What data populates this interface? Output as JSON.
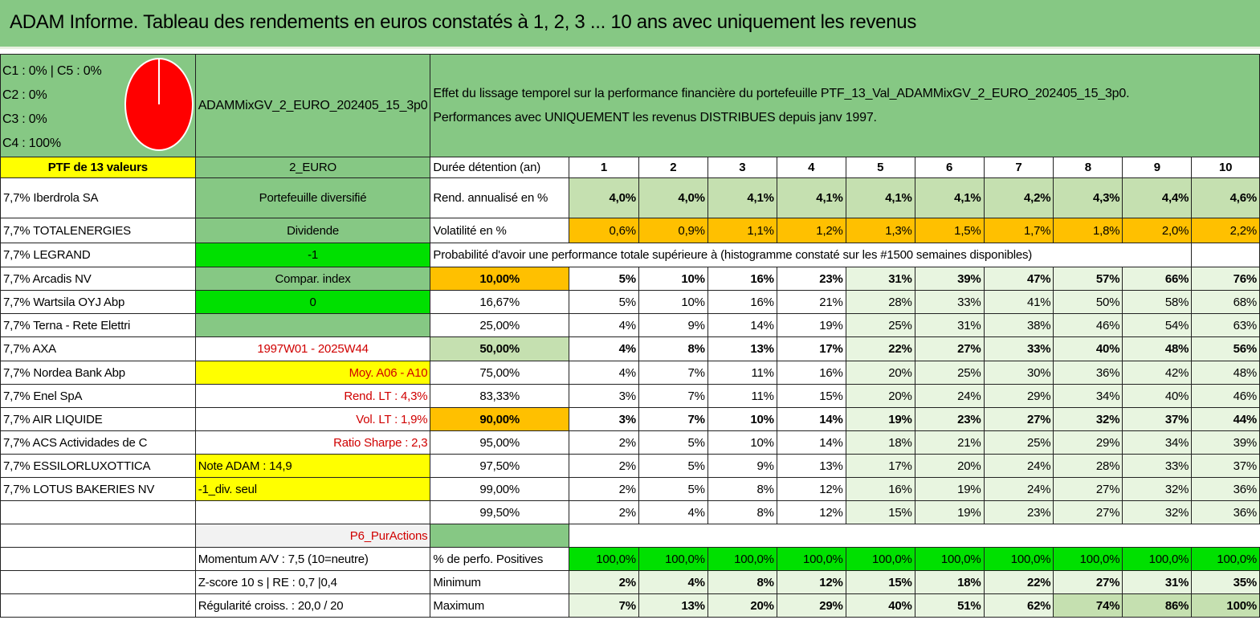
{
  "title": "ADAM Informe. Tableau des rendements en euros constatés à 1, 2, 3 ... 10 ans avec uniquement les revenus",
  "legend": [
    "C1 : 0% | C5 : 0%",
    "C2 : 0%",
    "C3 : 0%",
    "C4 : 100%"
  ],
  "pie": {
    "slices": [
      {
        "label": "C4",
        "value": 100,
        "color": "#ff0000"
      }
    ]
  },
  "portfolio_name": "ADAMMixGV_2_EURO_202405_15_3p0",
  "description_line1": "Effet du lissage temporel sur la performance financière du portefeuille PTF_13_Val_ADAMMixGV_2_EURO_202405_15_3p0.",
  "description_line2": "Performances avec UNIQUEMENT les revenus DISTRIBUES depuis janv 1997.",
  "ptf_label": "PTF de 13 valeurs",
  "currency": "2_EURO",
  "duration_label": "Durée détention (an)",
  "years": [
    "1",
    "2",
    "3",
    "4",
    "5",
    "6",
    "7",
    "8",
    "9",
    "10"
  ],
  "holdings": [
    "7,7% Iberdrola SA",
    "7,7% TOTALENERGIES",
    "7,7% LEGRAND",
    "7,7% Arcadis NV",
    "7,7% Wartsila OYJ Abp",
    "7,7% Terna - Rete Elettri",
    "7,7% AXA",
    "7,7% Nordea Bank Abp",
    "7,7% Enel SpA",
    "7,7% AIR LIQUIDE",
    "7,7% ACS Actividades de C",
    "7,7% ESSILORLUXOTTICA",
    "7,7% LOTUS BAKERIES NV"
  ],
  "info": {
    "diversified": "Portefeuille diversifié",
    "dividend": "Dividende",
    "dividend_value": "-1",
    "compar": "Compar. index",
    "compar_value": "0",
    "period": "1997W01 - 2025W44",
    "moy": "Moy. A06 - A10",
    "rend_lt": "Rend. LT : 4,3%",
    "vol_lt": "Vol. LT : 1,9%",
    "sharpe": "Ratio Sharpe : 2,3",
    "note": "Note ADAM : 14,9",
    "div_seul": "-1_div. seul",
    "p6": "P6_PurActions",
    "momentum": "Momentum A/V : 7,5 (10=neutre)",
    "zscore": "Z-score 10 s | RE : 0,7 |0,4",
    "regularite": "Régularité croiss. : 20,0 / 20"
  },
  "rend_label": "Rend. annualisé en %",
  "rend_values": [
    "4,0%",
    "4,0%",
    "4,1%",
    "4,1%",
    "4,1%",
    "4,1%",
    "4,2%",
    "4,3%",
    "4,4%",
    "4,6%"
  ],
  "vol_label": "Volatilité en %",
  "vol_values": [
    "0,6%",
    "0,9%",
    "1,1%",
    "1,2%",
    "1,3%",
    "1,5%",
    "1,7%",
    "1,8%",
    "2,0%",
    "2,2%"
  ],
  "prob_title": "Probabilité d'avoir une performance totale supérieure à (histogramme constaté sur les #1500 semaines disponibles)",
  "prob_rows": [
    {
      "threshold": "10,00%",
      "values": [
        "5%",
        "10%",
        "16%",
        "23%",
        "31%",
        "39%",
        "47%",
        "57%",
        "66%",
        "76%"
      ]
    },
    {
      "threshold": "16,67%",
      "values": [
        "5%",
        "10%",
        "16%",
        "21%",
        "28%",
        "33%",
        "41%",
        "50%",
        "58%",
        "68%"
      ]
    },
    {
      "threshold": "25,00%",
      "values": [
        "4%",
        "9%",
        "14%",
        "19%",
        "25%",
        "31%",
        "38%",
        "46%",
        "54%",
        "63%"
      ]
    },
    {
      "threshold": "50,00%",
      "values": [
        "4%",
        "8%",
        "13%",
        "17%",
        "22%",
        "27%",
        "33%",
        "40%",
        "48%",
        "56%"
      ]
    },
    {
      "threshold": "75,00%",
      "values": [
        "4%",
        "7%",
        "11%",
        "16%",
        "20%",
        "25%",
        "30%",
        "36%",
        "42%",
        "48%"
      ]
    },
    {
      "threshold": "83,33%",
      "values": [
        "3%",
        "7%",
        "11%",
        "15%",
        "20%",
        "24%",
        "29%",
        "34%",
        "40%",
        "46%"
      ]
    },
    {
      "threshold": "90,00%",
      "values": [
        "3%",
        "7%",
        "10%",
        "14%",
        "19%",
        "23%",
        "27%",
        "32%",
        "37%",
        "44%"
      ]
    },
    {
      "threshold": "95,00%",
      "values": [
        "2%",
        "5%",
        "10%",
        "14%",
        "18%",
        "21%",
        "25%",
        "29%",
        "34%",
        "39%"
      ]
    },
    {
      "threshold": "97,50%",
      "values": [
        "2%",
        "5%",
        "9%",
        "13%",
        "17%",
        "20%",
        "24%",
        "28%",
        "33%",
        "37%"
      ]
    },
    {
      "threshold": "99,00%",
      "values": [
        "2%",
        "5%",
        "8%",
        "12%",
        "16%",
        "19%",
        "24%",
        "27%",
        "32%",
        "36%"
      ]
    },
    {
      "threshold": "99,50%",
      "values": [
        "2%",
        "4%",
        "8%",
        "12%",
        "15%",
        "19%",
        "23%",
        "27%",
        "32%",
        "36%"
      ]
    }
  ],
  "positives_label": "% de perfo. Positives",
  "positives_values": [
    "100,0%",
    "100,0%",
    "100,0%",
    "100,0%",
    "100,0%",
    "100,0%",
    "100,0%",
    "100,0%",
    "100,0%",
    "100,0%"
  ],
  "min_label": "Minimum",
  "min_values": [
    "2%",
    "4%",
    "8%",
    "12%",
    "15%",
    "18%",
    "22%",
    "27%",
    "31%",
    "35%"
  ],
  "max_label": "Maximum",
  "max_values": [
    "7%",
    "13%",
    "20%",
    "29%",
    "40%",
    "51%",
    "62%",
    "74%",
    "86%",
    "100%"
  ]
}
